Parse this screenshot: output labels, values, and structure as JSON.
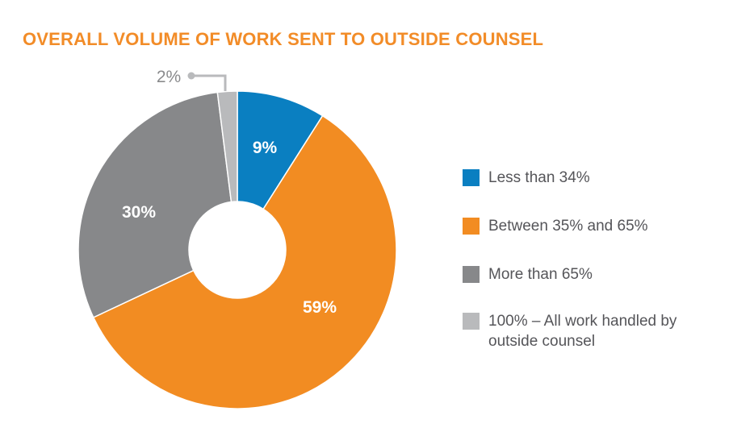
{
  "chart_data": {
    "type": "pie",
    "variant": "donut",
    "title": "OVERALL VOLUME OF WORK SENT TO OUTSIDE COUNSEL",
    "categories": [
      "Less than 34%",
      "Between 35% and 65%",
      "More than 65%",
      "100% – All work handled by outside counsel"
    ],
    "values": [
      9,
      59,
      30,
      2
    ],
    "data_labels": [
      "9%",
      "59%",
      "30%",
      "2%"
    ],
    "colors": [
      "#0a7fc1",
      "#f28c22",
      "#87888a",
      "#b9babc"
    ],
    "legend_position": "right",
    "label_color_inside": "#ffffff",
    "label_color_outside": "#8a8b8d"
  }
}
